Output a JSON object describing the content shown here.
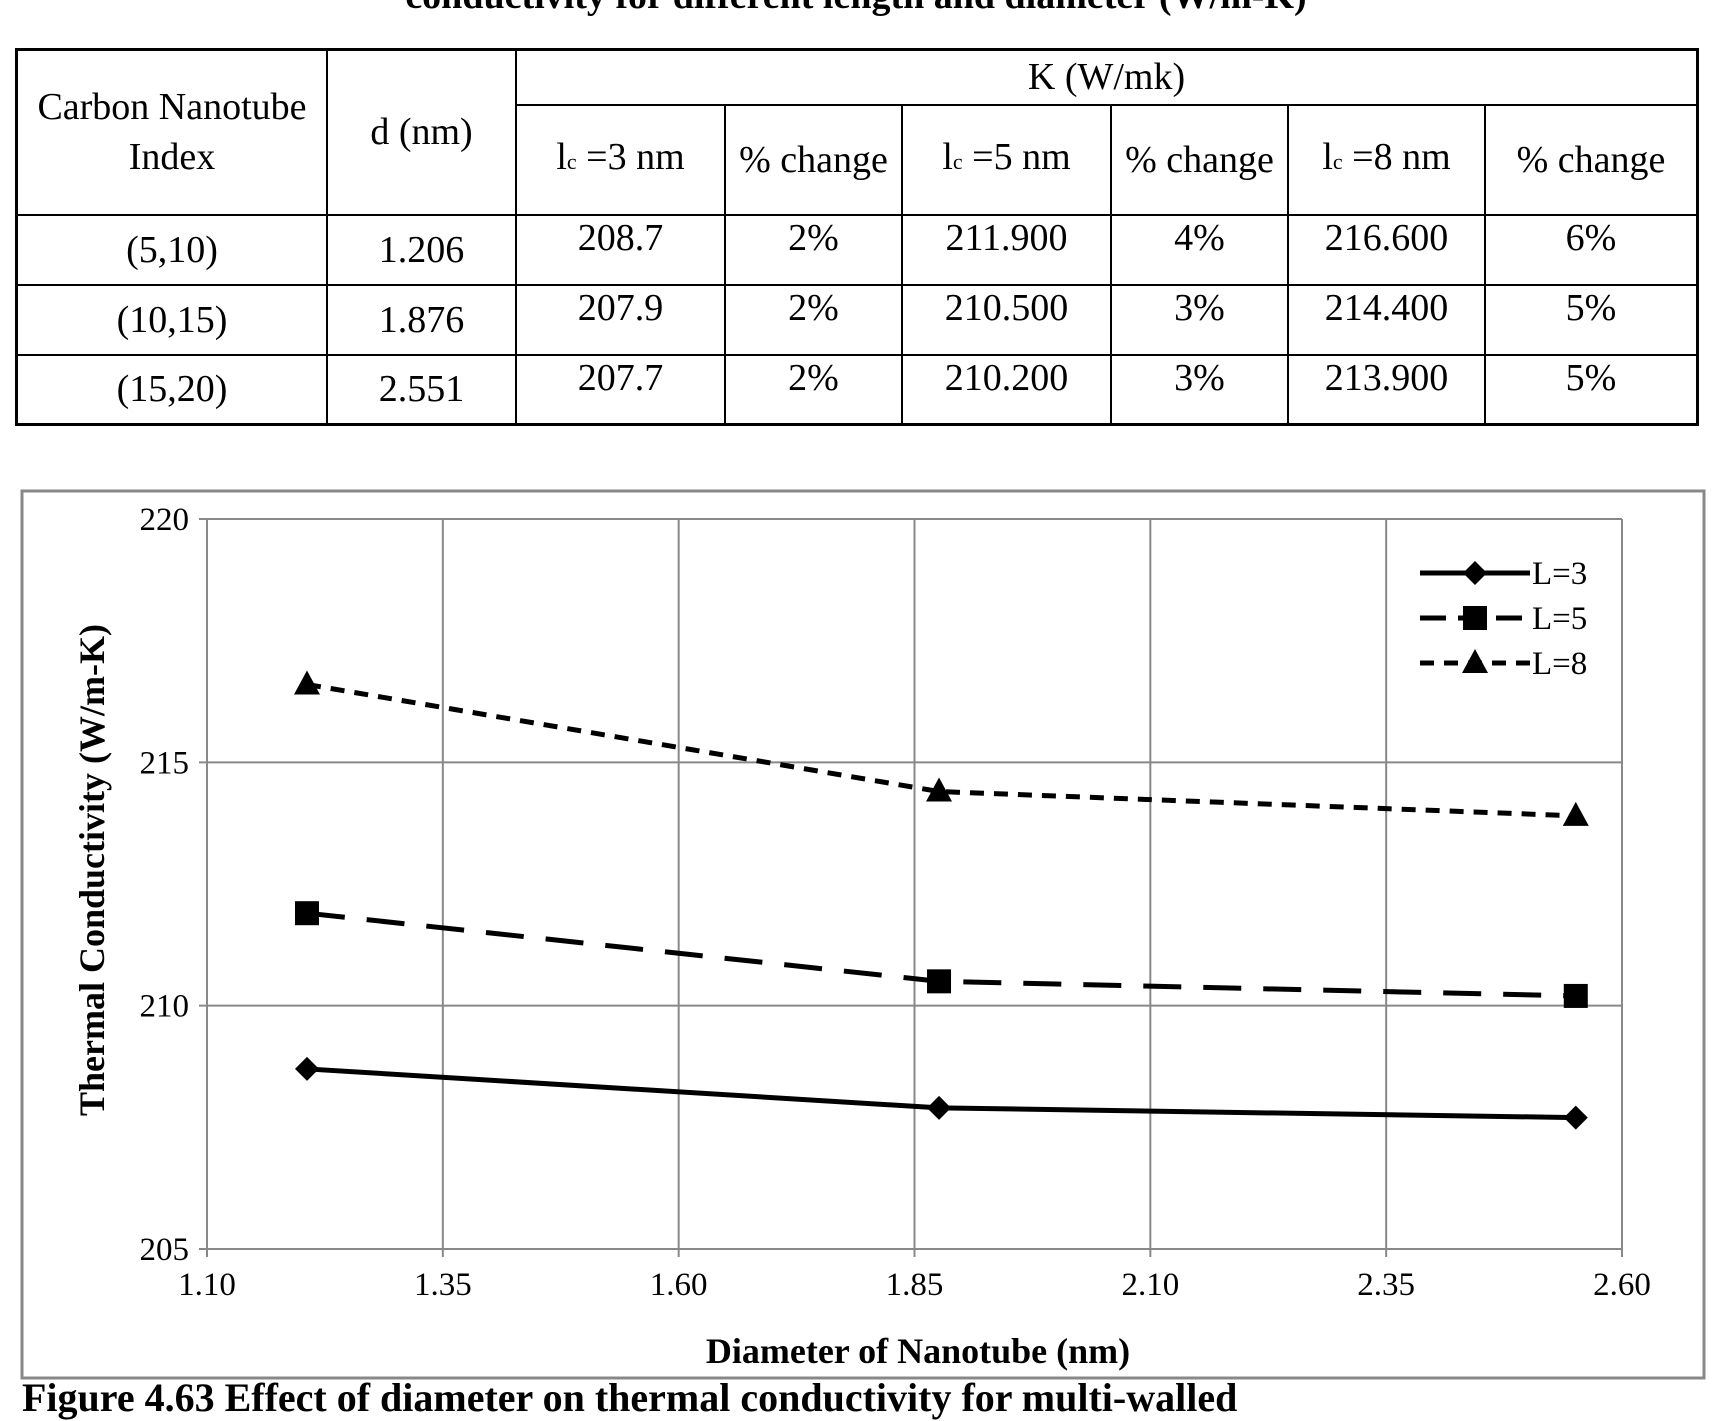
{
  "top_caption": "conductivity for different length and diameter (W/m-K)",
  "table": {
    "header_index": "Carbon Nanotube Index",
    "header_d": "d (nm)",
    "header_k": "K (W/mk)",
    "sub_headers": [
      {
        "l": "l",
        "sub": "c",
        "rest": " =3 nm"
      },
      {
        "text": "% change"
      },
      {
        "l": "l",
        "sub": "c",
        "rest": " =5 nm"
      },
      {
        "text": "% change"
      },
      {
        "l": "l",
        "sub": "c",
        "rest": " =8 nm"
      },
      {
        "text": "% change"
      }
    ],
    "rows": [
      [
        "(5,10)",
        "1.206",
        "208.7",
        "2%",
        "211.900",
        "4%",
        "216.600",
        "6%"
      ],
      [
        "(10,15)",
        "1.876",
        "207.9",
        "2%",
        "210.500",
        "3%",
        "214.400",
        "5%"
      ],
      [
        "(15,20)",
        "2.551",
        "207.7",
        "2%",
        "210.200",
        "3%",
        "213.900",
        "5%"
      ]
    ]
  },
  "chart_data": {
    "type": "line",
    "xlabel": "Diameter of  Nanotube (nm)",
    "ylabel": "Thermal Conductivity (W/m-K)",
    "xlim": [
      1.1,
      2.6
    ],
    "ylim": [
      205,
      220
    ],
    "xticks": [
      "1.10",
      "1.35",
      "1.60",
      "1.85",
      "2.10",
      "2.35",
      "2.60"
    ],
    "yticks": [
      "205",
      "210",
      "215",
      "220"
    ],
    "grid": true,
    "legend_position": "top-right",
    "x": [
      1.206,
      1.876,
      2.551
    ],
    "series": [
      {
        "name": "L=3",
        "values": [
          208.7,
          207.9,
          207.7
        ],
        "marker": "diamond",
        "dash": "solid"
      },
      {
        "name": "L=5",
        "values": [
          211.9,
          210.5,
          210.2
        ],
        "marker": "square",
        "dash": "long-dash"
      },
      {
        "name": "L=8",
        "values": [
          216.6,
          214.4,
          213.9
        ],
        "marker": "triangle",
        "dash": "short-dash"
      }
    ]
  },
  "bottom_caption": "Figure 4.63    Effect of diameter on thermal conductivity for multi-walled"
}
